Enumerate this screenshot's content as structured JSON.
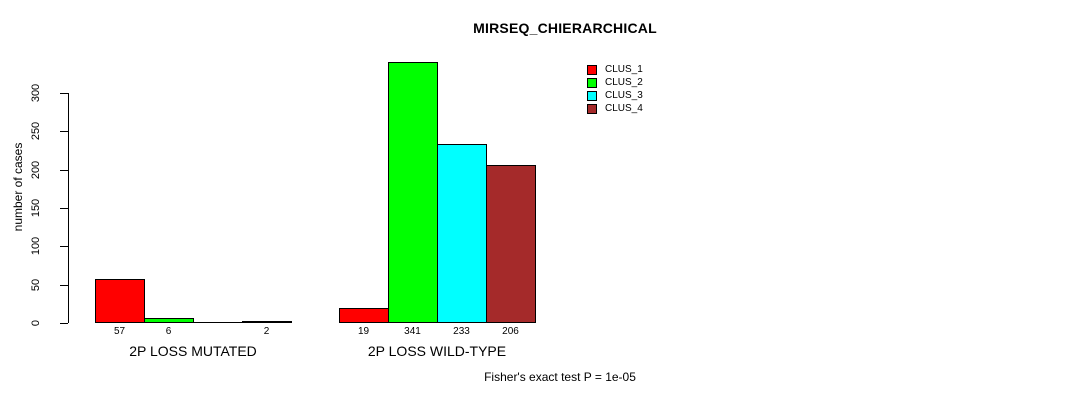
{
  "chart_data": {
    "type": "bar",
    "title": "MIRSEQ_CHIERARCHICAL",
    "ylabel": "number of cases",
    "xlabel": "",
    "categories": [
      "2P LOSS MUTATED",
      "2P LOSS WILD-TYPE"
    ],
    "series": [
      {
        "name": "CLUS_1",
        "color": "#FF0000",
        "values": [
          57,
          19
        ]
      },
      {
        "name": "CLUS_2",
        "color": "#00FF00",
        "values": [
          6,
          341
        ]
      },
      {
        "name": "CLUS_3",
        "color": "#00FFFF",
        "values": [
          0,
          233
        ]
      },
      {
        "name": "CLUS_4",
        "color": "#A52A2A",
        "values": [
          2,
          206
        ]
      }
    ],
    "bar_value_labels": [
      [
        "57",
        "6",
        "",
        "2"
      ],
      [
        "19",
        "341",
        "233",
        "206"
      ]
    ],
    "yticks": [
      0,
      50,
      100,
      150,
      200,
      250,
      300
    ],
    "ylim": [
      0,
      341
    ],
    "grid": false,
    "legend": {
      "position": "top-right",
      "entries": [
        "CLUS_1",
        "CLUS_2",
        "CLUS_3",
        "CLUS_4"
      ]
    },
    "annotation": "Fisher's exact test P = 1e-05",
    "axis_color": "#000000",
    "background": "#FFFFFF"
  }
}
